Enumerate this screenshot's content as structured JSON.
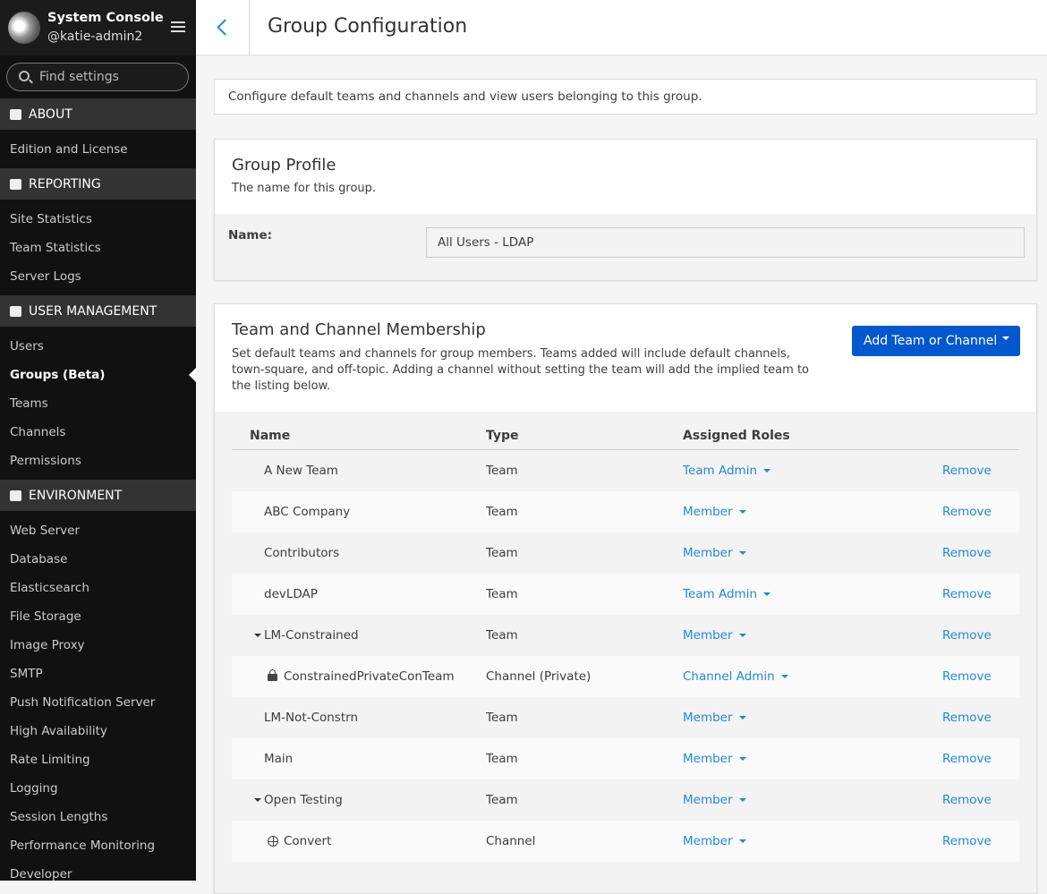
{
  "sidebar": {
    "title": "System Console",
    "username": "@katie-admin2",
    "search_placeholder": "Find settings",
    "sections": [
      {
        "title": "ABOUT",
        "icon": "info",
        "items": [
          "Edition and License"
        ]
      },
      {
        "title": "REPORTING",
        "icon": "chart",
        "items": [
          "Site Statistics",
          "Team Statistics",
          "Server Logs"
        ]
      },
      {
        "title": "USER MANAGEMENT",
        "icon": "users",
        "items": [
          "Users",
          "Groups (Beta)",
          "Teams",
          "Channels",
          "Permissions"
        ],
        "selected": 1
      },
      {
        "title": "ENVIRONMENT",
        "icon": "server",
        "items": [
          "Web Server",
          "Database",
          "Elasticsearch",
          "File Storage",
          "Image Proxy",
          "SMTP",
          "Push Notification Server",
          "High Availability",
          "Rate Limiting",
          "Logging",
          "Session Lengths",
          "Performance Monitoring",
          "Developer"
        ]
      }
    ]
  },
  "header": {
    "title": "Group Configuration"
  },
  "intro": "Configure default teams and channels and view users belonging to this group.",
  "profile": {
    "title": "Group Profile",
    "subtitle": "The name for this group.",
    "name_label": "Name:",
    "name_value": "All Users - LDAP"
  },
  "membership": {
    "title": "Team and Channel Membership",
    "description": "Set default teams and channels for group members. Teams added will include default channels, town-square, and off-topic. Adding a channel without setting the team will add the implied team to the listing below.",
    "button": "Add Team or Channel",
    "columns": [
      "Name",
      "Type",
      "Assigned Roles"
    ],
    "rows": [
      {
        "name": "A New Team",
        "type": "Team",
        "role": "Team Admin",
        "action": "Remove"
      },
      {
        "name": "ABC Company",
        "type": "Team",
        "role": "Member",
        "action": "Remove"
      },
      {
        "name": "Contributors",
        "type": "Team",
        "role": "Member",
        "action": "Remove"
      },
      {
        "name": "devLDAP",
        "type": "Team",
        "role": "Team Admin",
        "action": "Remove"
      },
      {
        "name": "LM-Constrained",
        "type": "Team",
        "role": "Member",
        "action": "Remove",
        "icon": "caret"
      },
      {
        "name": "ConstrainedPrivateConTeam",
        "type": "Channel (Private)",
        "role": "Channel Admin",
        "action": "Remove",
        "icon": "lock"
      },
      {
        "name": "LM-Not-Constrn",
        "type": "Team",
        "role": "Member",
        "action": "Remove"
      },
      {
        "name": "Main",
        "type": "Team",
        "role": "Member",
        "action": "Remove"
      },
      {
        "name": "Open Testing",
        "type": "Team",
        "role": "Member",
        "action": "Remove",
        "icon": "caret"
      },
      {
        "name": "Convert",
        "type": "Channel",
        "role": "Member",
        "action": "Remove",
        "icon": "globe"
      }
    ]
  }
}
